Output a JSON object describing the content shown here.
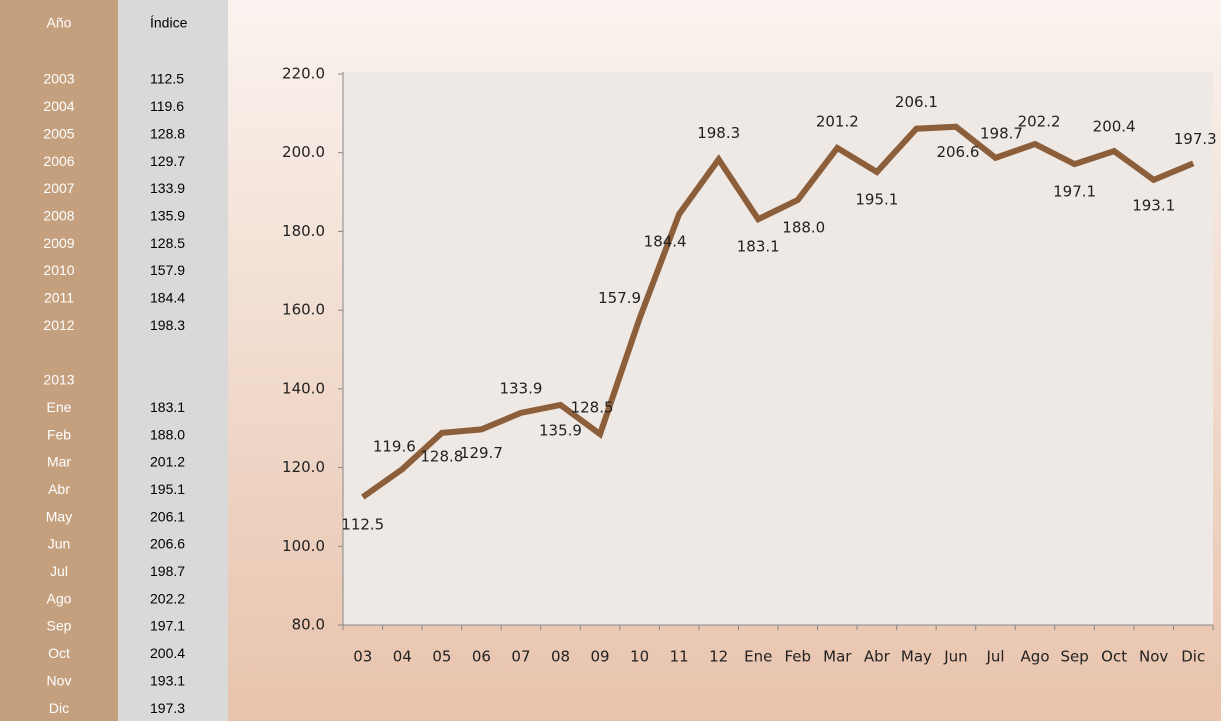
{
  "table": {
    "header": [
      "Año",
      "Índice"
    ],
    "rows": [
      [
        "2003",
        "112.5"
      ],
      [
        "2004",
        "119.6"
      ],
      [
        "2005",
        "128.8"
      ],
      [
        "2006",
        "129.7"
      ],
      [
        "2007",
        "133.9"
      ],
      [
        "2008",
        "135.9"
      ],
      [
        "2009",
        "128.5"
      ],
      [
        "2010",
        "157.9"
      ],
      [
        "2011",
        "184.4"
      ],
      [
        "2012",
        "198.3"
      ],
      [],
      [
        "2013"
      ],
      [
        "Ene",
        "183.1"
      ],
      [
        "Feb",
        "188.0"
      ],
      [
        "Mar",
        "201.2"
      ],
      [
        "Abr",
        "195.1"
      ],
      [
        "May",
        "206.1"
      ],
      [
        "Jun",
        "206.6"
      ],
      [
        "Jul",
        "198.7"
      ],
      [
        "Ago",
        "202.2"
      ],
      [
        "Sep",
        "197.1"
      ],
      [
        "Oct",
        "200.4"
      ],
      [
        "Nov",
        "193.1"
      ],
      [
        "Dic",
        "197.3"
      ]
    ]
  },
  "chart_data": {
    "type": "line",
    "categories": [
      "03",
      "04",
      "05",
      "06",
      "07",
      "08",
      "09",
      "10",
      "11",
      "12",
      "Ene",
      "Feb",
      "Mar",
      "Abr",
      "May",
      "Jun",
      "Jul",
      "Ago",
      "Sep",
      "Oct",
      "Nov",
      "Dic"
    ],
    "values": [
      112.5,
      119.6,
      128.8,
      129.7,
      133.9,
      135.9,
      128.5,
      157.9,
      184.4,
      198.3,
      183.1,
      188.0,
      201.2,
      195.1,
      206.1,
      206.6,
      198.7,
      202.2,
      197.1,
      200.4,
      193.1,
      197.3
    ],
    "value_labels": [
      "112.5",
      "119.6",
      "128.8",
      "129.7",
      "133.9",
      "135.9",
      "128.5",
      "157.9",
      "184.4",
      "198.3",
      "183.1",
      "188.0",
      "201.2",
      "195.1",
      "206.1",
      "206.6",
      "198.7",
      "202.2",
      "197.1",
      "200.4",
      "193.1",
      "197.3"
    ],
    "color": "#8c5f3a",
    "ylim": [
      80,
      220
    ],
    "yticks": [
      {
        "value": 80,
        "label": "80.0"
      },
      {
        "value": 100,
        "label": "100.0"
      },
      {
        "value": 120,
        "label": "120.0"
      },
      {
        "value": 140,
        "label": "140.0"
      },
      {
        "value": 160,
        "label": "160.0"
      },
      {
        "value": 180,
        "label": "180.0"
      },
      {
        "value": 200,
        "label": "200.0"
      },
      {
        "value": 220,
        "label": "220.0"
      }
    ]
  }
}
